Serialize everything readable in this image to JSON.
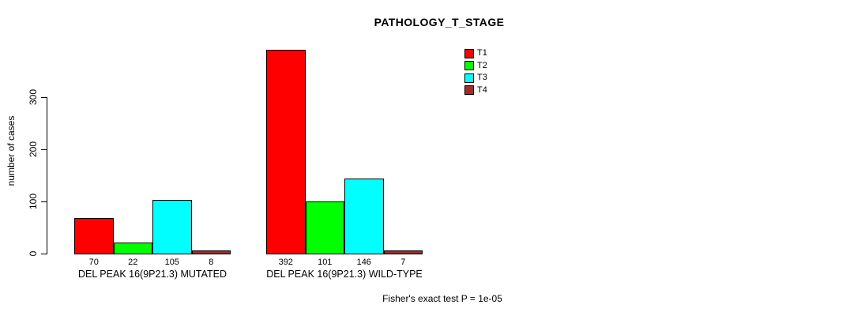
{
  "chart_data": {
    "type": "bar",
    "title": "PATHOLOGY_T_STAGE",
    "xlabel": "",
    "ylabel": "number of cases",
    "categories": [
      "DEL PEAK 16(9P21.3) MUTATED",
      "DEL PEAK 16(9P21.3) WILD-TYPE"
    ],
    "series": [
      {
        "name": "T1",
        "color": "#FF0000",
        "values": [
          70,
          392
        ]
      },
      {
        "name": "T2",
        "color": "#00FF00",
        "values": [
          22,
          101
        ]
      },
      {
        "name": "T3",
        "color": "#00FFFF",
        "values": [
          105,
          146
        ]
      },
      {
        "name": "T4",
        "color": "#A52A2A",
        "values": [
          8,
          7
        ]
      }
    ],
    "bar_value_labels": [
      [
        "70",
        "22",
        "105",
        "8"
      ],
      [
        "392",
        "101",
        "146",
        "7"
      ]
    ],
    "yticks": [
      0,
      100,
      200,
      300
    ],
    "ylim": [
      0,
      300
    ],
    "grid": false,
    "legend_position": "top-right",
    "legend_entries": [
      "T1",
      "T2",
      "T3",
      "T4"
    ],
    "annotation": "Fisher's exact test P = 1e-05"
  }
}
